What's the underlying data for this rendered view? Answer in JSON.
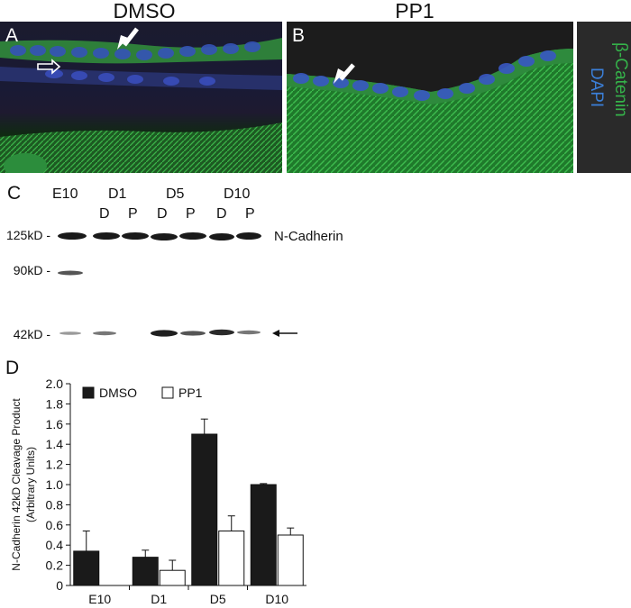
{
  "panelA": {
    "letter": "A",
    "title": "DMSO"
  },
  "panelB": {
    "letter": "B",
    "title": "PP1"
  },
  "stain_legend": {
    "green_label": "β-Catenin",
    "blue_label": "DAPI",
    "green_color": "#35b34a",
    "blue_color": "#3b7fd8"
  },
  "panelC": {
    "letter": "C",
    "groups": [
      "E10",
      "D1",
      "D5",
      "D10"
    ],
    "treatment_labels": [
      "D",
      "P",
      "D",
      "P",
      "D",
      "P"
    ],
    "markers": [
      "125kD -",
      "90kD -",
      "42kD -"
    ],
    "band_label": "N-Cadherin"
  },
  "panelD": {
    "letter": "D"
  },
  "chart_data": {
    "type": "bar",
    "categories": [
      "E10",
      "D1",
      "D5",
      "D10"
    ],
    "series": [
      {
        "name": "DMSO",
        "values": [
          0.34,
          0.28,
          1.5,
          1.0
        ],
        "errors": [
          0.2,
          0.07,
          0.15,
          0.01
        ],
        "color": "#1a1a1a"
      },
      {
        "name": "PP1",
        "values": [
          null,
          0.15,
          0.54,
          0.5
        ],
        "errors": [
          null,
          0.1,
          0.15,
          0.07
        ],
        "color": "#ffffff"
      }
    ],
    "ylabel": "N-Cadherin 42kD Cleavage Product",
    "ylabel2": "(Arbitrary Units)",
    "ylim": [
      0,
      2.0
    ],
    "yticks": [
      "0",
      "0.2",
      "0.4",
      "0.6",
      "0.8",
      "1.0",
      "1.2",
      "1.4",
      "1.6",
      "1.8",
      "2.0"
    ],
    "legend_placement": "top-left"
  }
}
